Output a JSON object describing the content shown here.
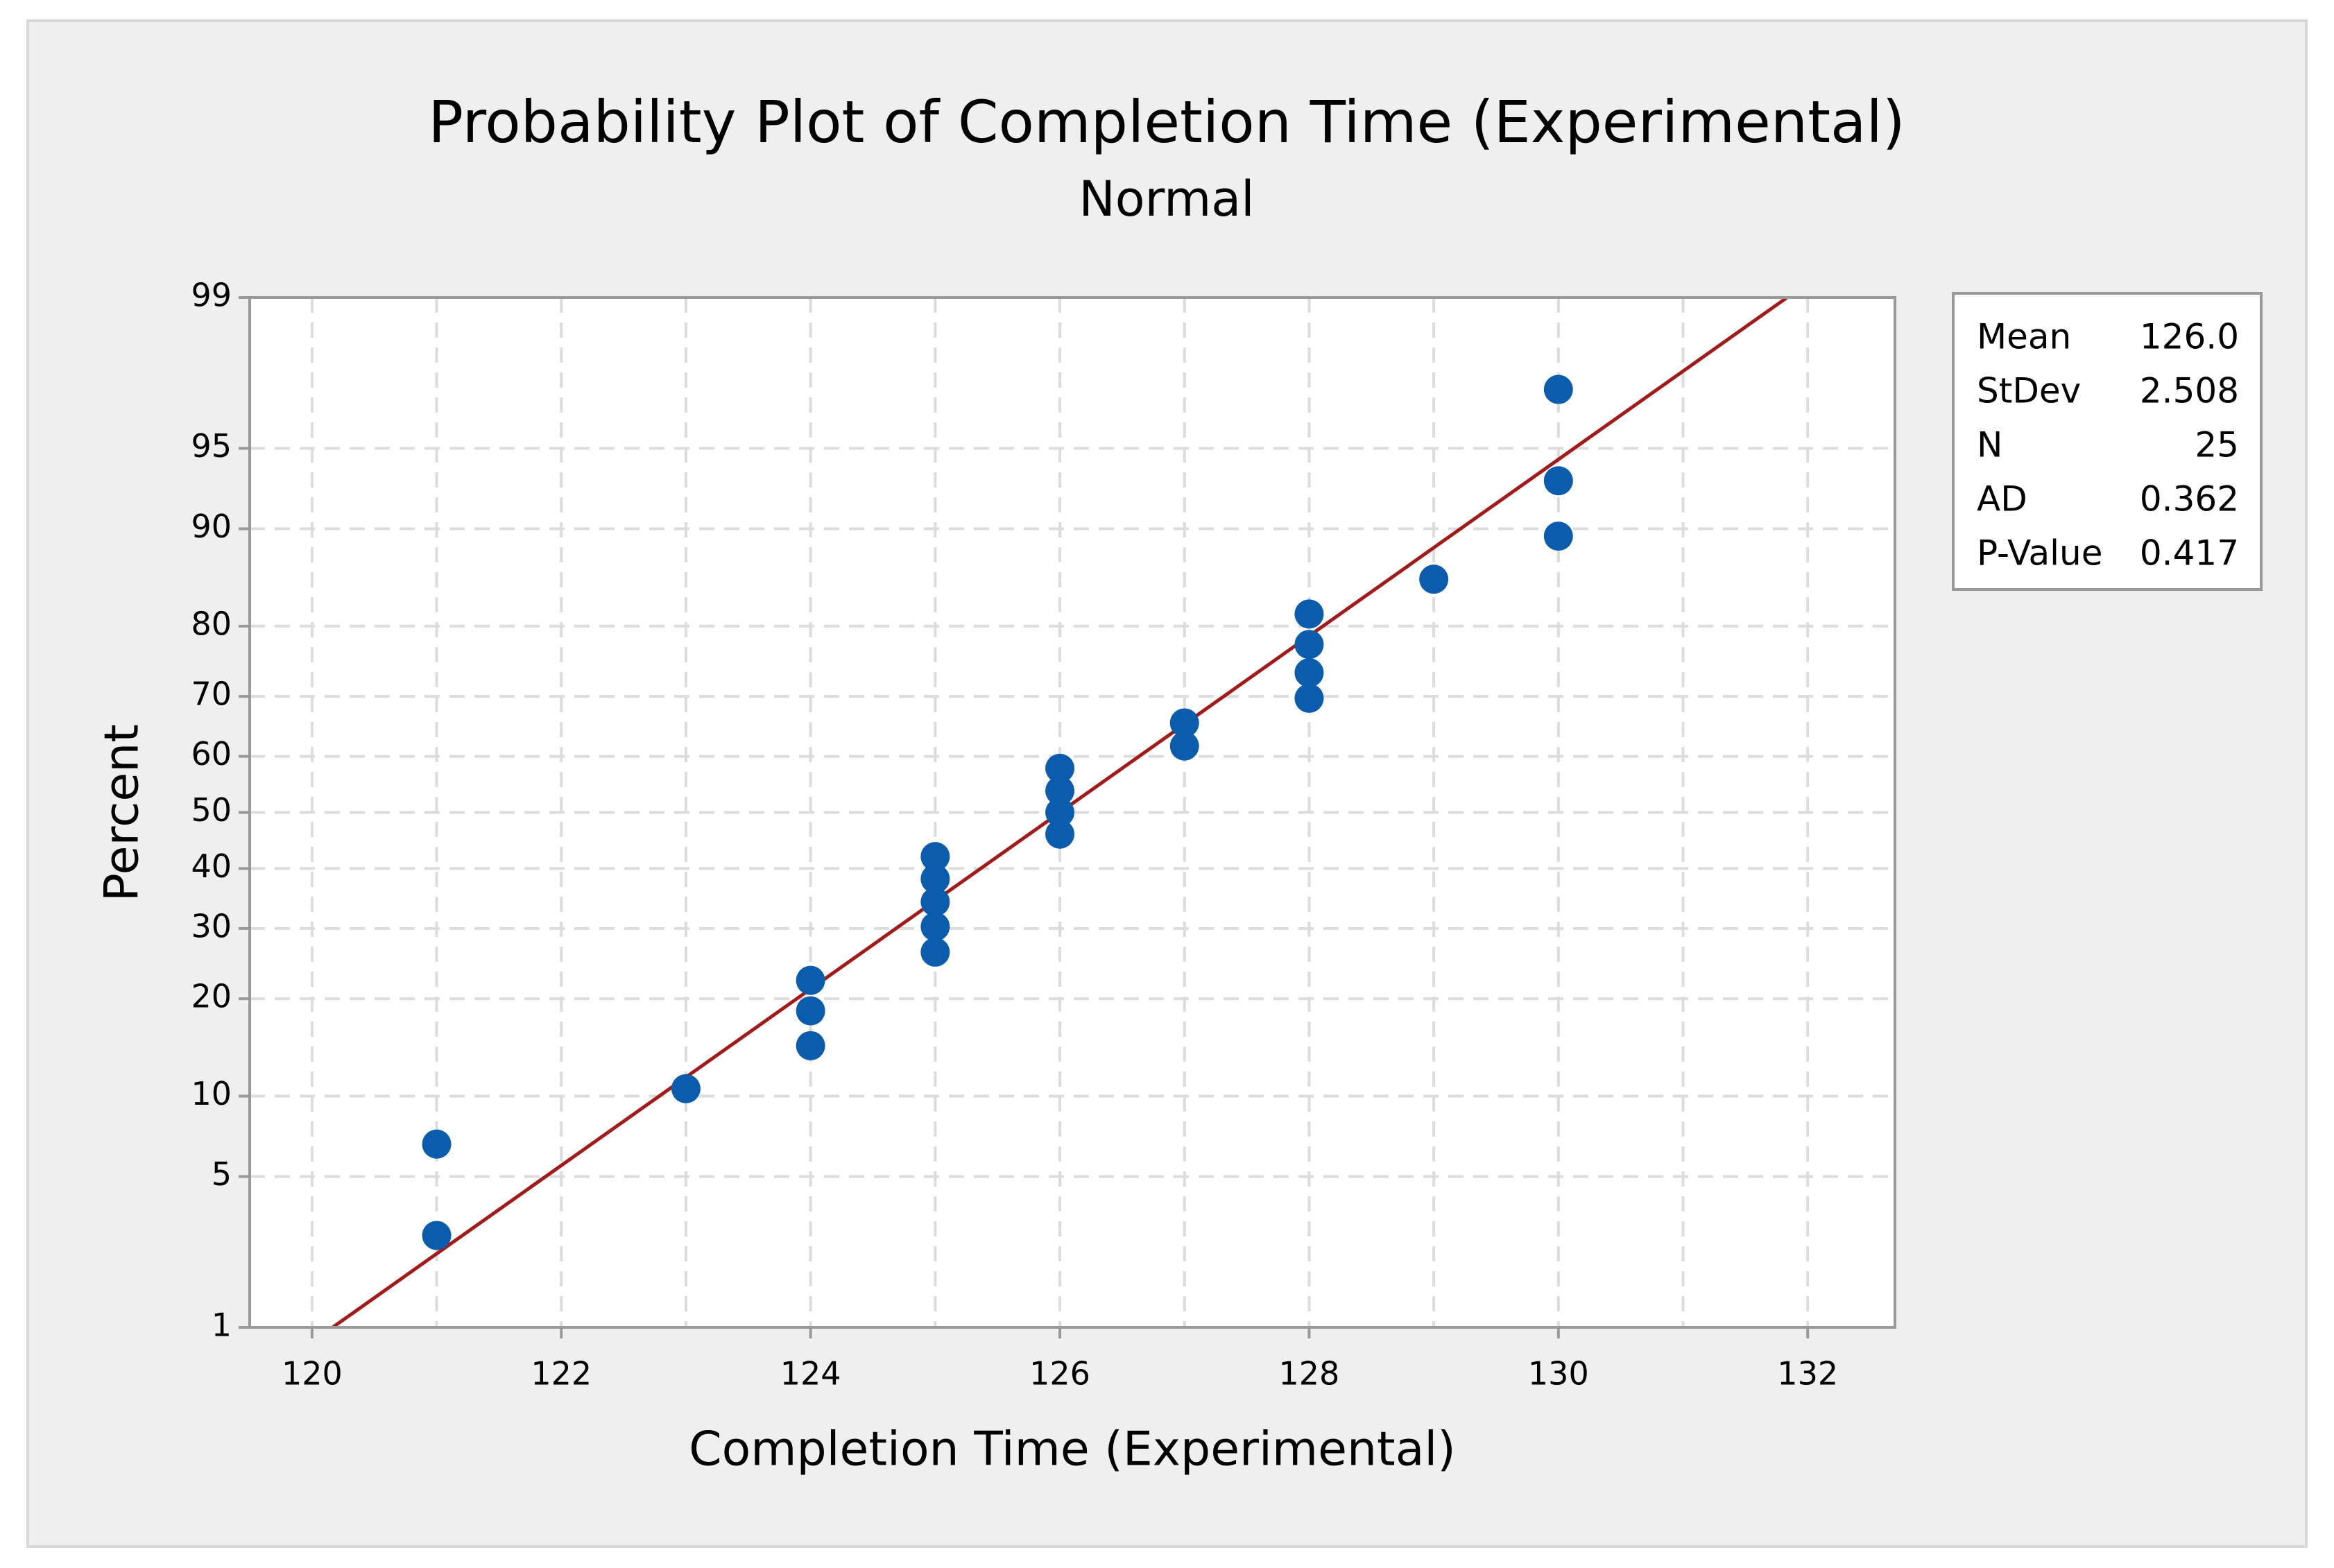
{
  "chart_data": {
    "type": "probability",
    "title": "Probability Plot of Completion Time (Experimental)",
    "subtitle": "Normal",
    "xlabel": "Completion Time (Experimental)",
    "ylabel": "Percent",
    "x": [
      121,
      121,
      123,
      124,
      124,
      124,
      125,
      125,
      125,
      125,
      125,
      126,
      126,
      126,
      126,
      127,
      127,
      128,
      128,
      128,
      128,
      129,
      130,
      130,
      130
    ],
    "values": [
      2.8,
      6.7,
      10.6,
      14.6,
      18.5,
      22.4,
      26.4,
      30.3,
      34.3,
      38.2,
      42.1,
      46.1,
      50,
      53.9,
      57.9,
      61.8,
      65.7,
      69.7,
      73.6,
      77.6,
      81.5,
      85.4,
      89.4,
      93.3,
      97.2
    ],
    "color": "#0b5cad",
    "line_color": "#a31a1a",
    "xlim": [
      119.5,
      132.7
    ],
    "xticks": [
      120,
      122,
      124,
      126,
      128,
      130,
      132
    ],
    "xminor_ticks": [
      121,
      123,
      125,
      127,
      129,
      131
    ],
    "ylim": [
      1,
      99
    ],
    "yticks": [
      1,
      5,
      10,
      20,
      30,
      40,
      50,
      60,
      70,
      80,
      90,
      95,
      99
    ],
    "grid": true,
    "stats": [
      {
        "label": "Mean",
        "value": "126.0"
      },
      {
        "label": "StDev",
        "value": "2.508"
      },
      {
        "label": "N",
        "value": "25"
      },
      {
        "label": "AD",
        "value": "0.362"
      },
      {
        "label": "P-Value",
        "value": "0.417"
      }
    ]
  }
}
